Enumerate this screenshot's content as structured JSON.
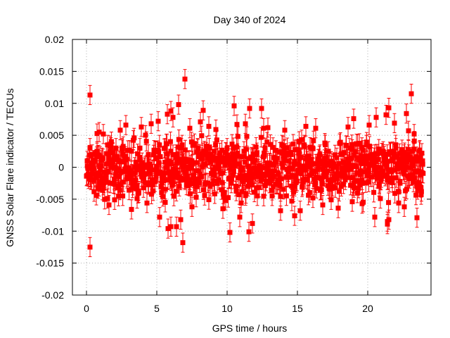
{
  "chart_data": {
    "type": "scatter",
    "title": "Day 340 of 2024",
    "xlabel": "GPS time / hours",
    "ylabel": "GNSS Solar Flare indicator / TECUs",
    "xlim": [
      -1,
      24.5
    ],
    "ylim": [
      -0.02,
      0.02
    ],
    "x_ticks": [
      0,
      5,
      10,
      15,
      20
    ],
    "x_tick_labels": [
      "0",
      "5",
      "10",
      "15",
      "20"
    ],
    "y_ticks": [
      -0.02,
      -0.015,
      -0.01,
      -0.005,
      0,
      0.005,
      0.01,
      0.015,
      0.02
    ],
    "y_tick_labels": [
      "-0.02",
      "-0.015",
      "-0.01",
      "-0.005",
      "0",
      "0.005",
      "0.01",
      "0.015",
      "0.02"
    ],
    "grid": true,
    "color": "#ff0000",
    "series": [
      {
        "error": 0.0015,
        "x": [
          0.05,
          0.15,
          0.25,
          0.3,
          0.4,
          0.55,
          0.75,
          0.9,
          1.1,
          1.3,
          1.5,
          1.7,
          1.9,
          2.1,
          2.3,
          2.6,
          2.9,
          3.2,
          3.5,
          3.8,
          4.1,
          4.4,
          4.7,
          5.0,
          5.3,
          5.6,
          5.8,
          6.0,
          6.2,
          6.4,
          6.6,
          6.8,
          7.0,
          7.3,
          7.6,
          7.9,
          8.2,
          8.5,
          8.8,
          9.1,
          9.4,
          9.7,
          10.0,
          10.3,
          10.6,
          10.9,
          11.2,
          11.5,
          11.8,
          12.1,
          12.4,
          12.7,
          13.0,
          13.3,
          13.6,
          13.9,
          14.2,
          14.5,
          14.8,
          15.1,
          15.4,
          15.7,
          16.0,
          16.3,
          16.6,
          16.9,
          17.2,
          17.5,
          17.8,
          18.1,
          18.4,
          18.7,
          19.0,
          19.3,
          19.6,
          19.9,
          20.2,
          20.5,
          20.8,
          21.1,
          21.4,
          21.7,
          22.0,
          22.3,
          22.6,
          22.9,
          23.2,
          23.5,
          23.7,
          23.9,
          0.25,
          0.25,
          6.15,
          5.75,
          6.0,
          7.0,
          12.45,
          5.8,
          6.4,
          6.85,
          8.3,
          10.9,
          22.75,
          23.1,
          21.5,
          21.3,
          20.6,
          19.0,
          11.6,
          10.5,
          10.2,
          11.8,
          6.7,
          6.0,
          5.2,
          1.6,
          3.2,
          4.3,
          7.5,
          9.7,
          13.8,
          14.8,
          15.2,
          16.8,
          17.9,
          19.6,
          20.5,
          21.4,
          22.6,
          23.5,
          12.6,
          10.7,
          8.1,
          4.6,
          2.4,
          0.9,
          1.2,
          2.8,
          3.9,
          5.1,
          6.55,
          7.35,
          8.7,
          9.2,
          11.3,
          12.9,
          14.1,
          15.6,
          16.3,
          18.6,
          20.1,
          21.9,
          22.9,
          23.3,
          0.7,
          2.0,
          3.6,
          5.6,
          7.8,
          9.9,
          11.0,
          13.2,
          14.6,
          16.1,
          17.4,
          18.9,
          20.9,
          22.2,
          23.8,
          11.55,
          21.4,
          21.5
        ],
        "y": [
          0.001,
          -0.0015,
          0.003,
          -0.002,
          0.002,
          -0.001,
          0.0025,
          -0.003,
          0.0015,
          -0.002,
          0.0035,
          -0.0025,
          0.001,
          0.003,
          -0.003,
          0.002,
          -0.0015,
          0.0025,
          -0.002,
          0.003,
          -0.001,
          0.002,
          -0.0025,
          0.0015,
          -0.003,
          0.003,
          -0.002,
          0.0025,
          -0.0015,
          0.002,
          -0.003,
          0.0035,
          -0.002,
          0.001,
          -0.0025,
          0.003,
          -0.0015,
          0.002,
          -0.003,
          0.0025,
          -0.002,
          0.0015,
          0.003,
          -0.0025,
          0.002,
          -0.0015,
          0.0025,
          -0.003,
          0.0015,
          0.002,
          -0.002,
          0.003,
          -0.0025,
          0.0015,
          -0.002,
          0.0035,
          -0.0015,
          0.002,
          -0.003,
          0.0025,
          -0.002,
          0.001,
          0.003,
          -0.0025,
          0.002,
          -0.0015,
          0.0025,
          -0.003,
          0.0015,
          0.002,
          -0.002,
          0.003,
          -0.0025,
          0.0015,
          -0.002,
          0.0035,
          -0.0015,
          0.002,
          -0.003,
          0.0025,
          -0.002,
          0.001,
          0.003,
          -0.0025,
          0.002,
          -0.0015,
          0.0025,
          -0.003,
          0.0015,
          0.001,
          0.0113,
          -0.0125,
          0.0078,
          0.0083,
          0.0088,
          0.0138,
          0.0092,
          -0.0096,
          -0.0093,
          -0.0118,
          0.0089,
          -0.0078,
          0.0084,
          0.0115,
          0.0093,
          0.0082,
          0.0078,
          0.0076,
          0.0092,
          0.0096,
          -0.0102,
          -0.0088,
          -0.0082,
          -0.0093,
          -0.0078,
          -0.0059,
          -0.0066,
          -0.0056,
          -0.0062,
          -0.0065,
          -0.0068,
          -0.0076,
          -0.0068,
          -0.0059,
          -0.0064,
          -0.0057,
          -0.0078,
          -0.0089,
          -0.0062,
          -0.0079,
          0.0061,
          0.0067,
          0.0071,
          0.0068,
          0.0058,
          0.0055,
          0.0052,
          0.0066,
          0.0063,
          0.0072,
          0.0098,
          0.0061,
          0.0064,
          0.0059,
          0.0068,
          0.0062,
          0.0058,
          0.0064,
          0.0061,
          0.0063,
          0.0066,
          0.0069,
          0.0057,
          0.0052,
          -0.0044,
          -0.0051,
          -0.0049,
          -0.0055,
          -0.0047,
          -0.0052,
          -0.0056,
          -0.0045,
          -0.0053,
          -0.0048,
          -0.0051,
          -0.0054,
          -0.0049,
          -0.0056,
          -0.0043,
          -0.0101,
          -0.0085,
          -0.0082
        ]
      }
    ]
  }
}
